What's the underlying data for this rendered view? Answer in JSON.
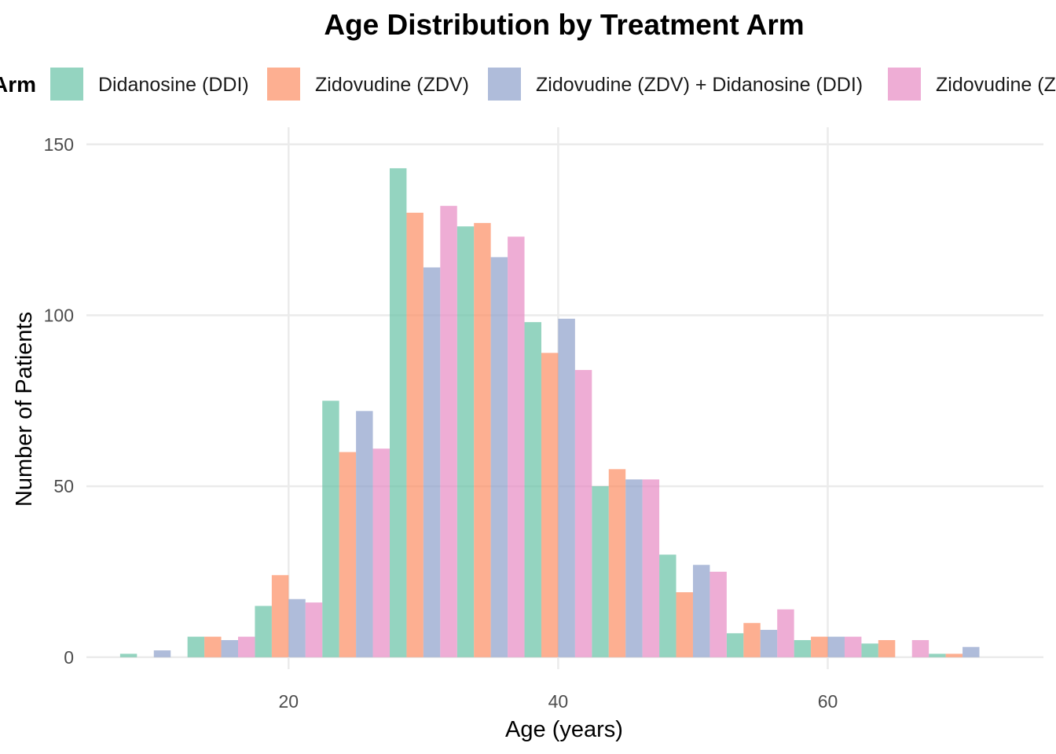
{
  "chart_data": {
    "type": "bar",
    "title": "Age Distribution by Treatment Arm",
    "xlabel": "Age (years)",
    "ylabel": "Number of Patients",
    "legend_title": "Arm",
    "legend_position": "top",
    "grid": true,
    "xlim": [
      5,
      76
    ],
    "ylim": [
      -3.5,
      155
    ],
    "x_ticks": [
      20,
      40,
      60
    ],
    "y_ticks": [
      0,
      50,
      100,
      150
    ],
    "bin_width": 5,
    "bin_centers": [
      10,
      15,
      20,
      25,
      30,
      35,
      40,
      45,
      50,
      55,
      60,
      65,
      70
    ],
    "series": [
      {
        "name": "Didanosine (DDI)",
        "color": "#66c2a5",
        "values": [
          1,
          6,
          15,
          75,
          143,
          126,
          98,
          50,
          30,
          7,
          5,
          4,
          1
        ]
      },
      {
        "name": "Zidovudine (ZDV)",
        "color": "#fc8d62",
        "values": [
          0,
          6,
          24,
          60,
          130,
          127,
          89,
          55,
          19,
          10,
          6,
          5,
          1
        ]
      },
      {
        "name": "Zidovudine (ZDV) + Didanosine (DDI)",
        "color": "#8da0cb",
        "values": [
          2,
          5,
          17,
          72,
          114,
          117,
          99,
          52,
          27,
          8,
          6,
          0,
          3
        ]
      },
      {
        "name": "Zidovudine (ZDV) + Zalcitabine (ZAL)",
        "color": "#e78ac3",
        "values": [
          0,
          6,
          16,
          61,
          132,
          123,
          84,
          52,
          25,
          14,
          6,
          5,
          0
        ]
      }
    ]
  }
}
